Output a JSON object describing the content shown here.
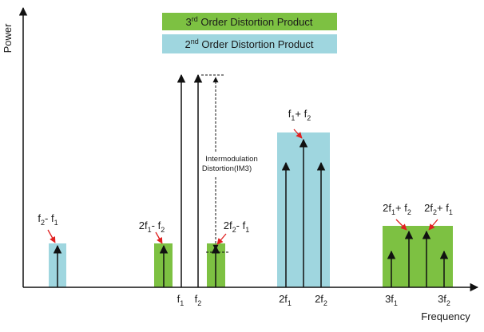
{
  "axes": {
    "y_label": "Power",
    "x_label": "Frequency"
  },
  "legend": {
    "third_order": {
      "base": "3",
      "sup": "rd",
      "rest": " Order Distortion Product",
      "color": "#7dc142"
    },
    "second_order": {
      "base": "2",
      "sup": "nd",
      "rest": " Order Distortion Product",
      "color": "#9fd6df"
    }
  },
  "annotations": {
    "im3_line1": "Intermodulation",
    "im3_line2": "Distortion(IM3)"
  },
  "labels": {
    "f2_minus_f1": [
      {
        "t": "f"
      },
      {
        "t": "2",
        "sub": true
      },
      {
        "t": "- f"
      },
      {
        "t": "1",
        "sub": true
      }
    ],
    "two_f1_minus_f2": [
      {
        "t": "2f"
      },
      {
        "t": "1",
        "sub": true
      },
      {
        "t": "- f"
      },
      {
        "t": "2",
        "sub": true
      }
    ],
    "two_f2_minus_f1": [
      {
        "t": "2f"
      },
      {
        "t": "2",
        "sub": true
      },
      {
        "t": "- f"
      },
      {
        "t": "1",
        "sub": true
      }
    ],
    "f1_plus_f2": [
      {
        "t": "f"
      },
      {
        "t": "1",
        "sub": true
      },
      {
        "t": "+ f"
      },
      {
        "t": "2",
        "sub": true
      }
    ],
    "two_f1_plus_f2": [
      {
        "t": "2f"
      },
      {
        "t": "1",
        "sub": true
      },
      {
        "t": "+ f"
      },
      {
        "t": "2",
        "sub": true
      }
    ],
    "two_f2_plus_f1": [
      {
        "t": "2f"
      },
      {
        "t": "2",
        "sub": true
      },
      {
        "t": "+ f"
      },
      {
        "t": "1",
        "sub": true
      }
    ]
  },
  "ticks": {
    "f1": [
      {
        "t": "f"
      },
      {
        "t": "1",
        "sub": true
      }
    ],
    "f2": [
      {
        "t": "f"
      },
      {
        "t": "2",
        "sub": true
      }
    ],
    "two_f1": [
      {
        "t": "2f"
      },
      {
        "t": "1",
        "sub": true
      }
    ],
    "two_f2": [
      {
        "t": "2f"
      },
      {
        "t": "2",
        "sub": true
      }
    ],
    "three_f1": [
      {
        "t": "3f"
      },
      {
        "t": "1",
        "sub": true
      }
    ],
    "three_f2": [
      {
        "t": "3f"
      },
      {
        "t": "2",
        "sub": true
      }
    ]
  },
  "colors": {
    "green": "#7dc142",
    "blue": "#9fd6df",
    "arrow_red": "#e02020",
    "line": "#111111"
  }
}
